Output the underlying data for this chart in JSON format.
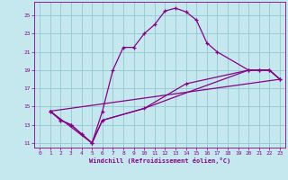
{
  "xlabel": "Windchill (Refroidissement éolien,°C)",
  "bg_color": "#c5e8ee",
  "line_color": "#880088",
  "grid_color": "#99ccd5",
  "xlim": [
    -0.5,
    23.5
  ],
  "ylim": [
    10.5,
    26.5
  ],
  "yticks": [
    11,
    13,
    15,
    17,
    19,
    21,
    23,
    25
  ],
  "xticks": [
    0,
    1,
    2,
    3,
    4,
    5,
    6,
    7,
    8,
    9,
    10,
    11,
    12,
    13,
    14,
    15,
    16,
    17,
    18,
    19,
    20,
    21,
    22,
    23
  ],
  "series1_x": [
    1,
    2,
    3,
    4,
    5,
    6,
    7,
    8,
    9,
    10,
    11,
    12,
    13,
    14,
    15,
    16,
    17,
    20,
    21,
    22,
    23
  ],
  "series1_y": [
    14.5,
    13.5,
    13.0,
    12.0,
    11.0,
    14.5,
    19.0,
    21.5,
    21.5,
    23.0,
    24.0,
    25.5,
    25.8,
    25.4,
    24.5,
    22.0,
    21.0,
    19.0,
    19.0,
    19.0,
    18.0
  ],
  "series2_x": [
    1,
    2,
    3,
    4,
    5,
    6,
    10,
    14,
    20,
    21,
    22,
    23
  ],
  "series2_y": [
    14.5,
    13.5,
    13.0,
    12.0,
    11.0,
    13.5,
    14.8,
    17.5,
    19.0,
    19.0,
    19.0,
    18.0
  ],
  "series3_x": [
    1,
    23
  ],
  "series3_y": [
    14.5,
    18.0
  ],
  "series4_x": [
    1,
    5,
    6,
    10,
    14,
    20,
    21,
    22,
    23
  ],
  "series4_y": [
    14.5,
    11.0,
    13.5,
    14.8,
    16.5,
    19.0,
    19.0,
    19.0,
    18.0
  ]
}
